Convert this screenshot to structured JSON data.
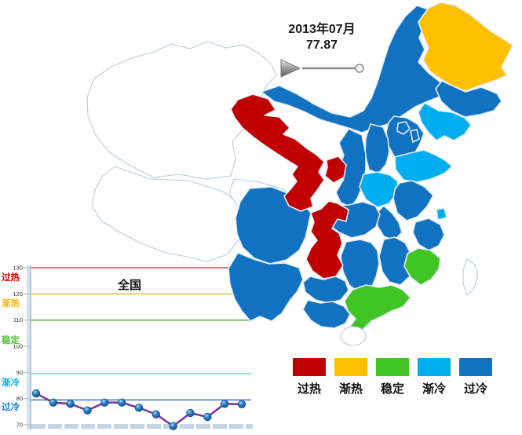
{
  "header": {
    "title_date": "2013年07月",
    "title_value": "77.87"
  },
  "slider": {
    "state": "paused",
    "position": "end"
  },
  "legend": {
    "items": [
      {
        "label": "过热",
        "color": "#C00000"
      },
      {
        "label": "渐热",
        "color": "#FFC000"
      },
      {
        "label": "稳定",
        "color": "#41C524"
      },
      {
        "label": "渐冷",
        "color": "#00AEEF"
      },
      {
        "label": "过冷",
        "color": "#1272C2"
      }
    ],
    "colors": {
      "过热": "#C00000",
      "渐热": "#FFC000",
      "稳定": "#41C524",
      "渐冷": "#00AEEF",
      "过冷": "#1272C2",
      "无数据": "#FFFFFF"
    }
  },
  "map": {
    "provinces": [
      {
        "id": "xinjiang",
        "name": "新疆",
        "status": "无数据"
      },
      {
        "id": "xizang",
        "name": "西藏",
        "status": "无数据"
      },
      {
        "id": "qinghai",
        "name": "青海",
        "status": "无数据"
      },
      {
        "id": "taiwan",
        "name": "台湾",
        "status": "无数据"
      },
      {
        "id": "hainan",
        "name": "海南",
        "status": "无数据"
      },
      {
        "id": "gansu",
        "name": "甘肃",
        "status": "过热"
      },
      {
        "id": "ningxia",
        "name": "宁夏",
        "status": "过热"
      },
      {
        "id": "chongqing",
        "name": "重庆",
        "status": "过热"
      },
      {
        "id": "heilongjiang",
        "name": "黑龙江",
        "status": "渐热"
      },
      {
        "id": "guangdong",
        "name": "广东",
        "status": "稳定"
      },
      {
        "id": "fujian",
        "name": "福建",
        "status": "稳定"
      },
      {
        "id": "liaoning",
        "name": "辽宁",
        "status": "渐冷"
      },
      {
        "id": "shandong",
        "name": "山东",
        "status": "渐冷"
      },
      {
        "id": "henan",
        "name": "河南",
        "status": "渐冷"
      },
      {
        "id": "shanghai",
        "name": "上海",
        "status": "渐冷"
      },
      {
        "id": "neimenggu",
        "name": "内蒙古",
        "status": "过冷"
      },
      {
        "id": "jilin",
        "name": "吉林",
        "status": "过冷"
      },
      {
        "id": "hebei",
        "name": "河北",
        "status": "过冷"
      },
      {
        "id": "beijing",
        "name": "北京",
        "status": "过冷"
      },
      {
        "id": "tianjin",
        "name": "天津",
        "status": "过冷"
      },
      {
        "id": "shanxi",
        "name": "山西",
        "status": "过冷"
      },
      {
        "id": "shaanxi",
        "name": "陕西",
        "status": "过冷"
      },
      {
        "id": "jiangsu",
        "name": "江苏",
        "status": "过冷"
      },
      {
        "id": "anhui",
        "name": "安徽",
        "status": "过冷"
      },
      {
        "id": "hubei",
        "name": "湖北",
        "status": "过冷"
      },
      {
        "id": "sichuan",
        "name": "四川",
        "status": "过冷"
      },
      {
        "id": "guizhou",
        "name": "贵州",
        "status": "过冷"
      },
      {
        "id": "yunnan",
        "name": "云南",
        "status": "过冷"
      },
      {
        "id": "hunan",
        "name": "湖南",
        "status": "过冷"
      },
      {
        "id": "jiangxi",
        "name": "江西",
        "status": "过冷"
      },
      {
        "id": "zhejiang",
        "name": "浙江",
        "status": "过冷"
      },
      {
        "id": "guangxi",
        "name": "广西",
        "status": "过冷"
      }
    ]
  },
  "chart": {
    "title": "全国",
    "y_ticks": [
      130,
      120,
      110,
      100,
      90,
      80,
      70
    ],
    "zones": [
      {
        "label": "过热",
        "text_color": "#CC0000",
        "line_color": "#C0504D",
        "line_value": 130
      },
      {
        "label": "渐热",
        "text_color": "#FFB400",
        "line_color": "#E2C14D",
        "line_value": 120
      },
      {
        "label": "稳定",
        "text_color": "#52C332",
        "line_color": "#71AE47",
        "line_value": 110
      },
      {
        "label": "渐冷",
        "text_color": "#00AEEF",
        "line_color": "#7DD5D5",
        "line_value": 89.5
      },
      {
        "label": "过冷",
        "text_color": "#1080D0",
        "line_color": "#4F81BD",
        "line_value": 79.5
      }
    ],
    "series_color": "#7A3B9B",
    "values": [
      82,
      78.5,
      78,
      75.5,
      78.5,
      78.5,
      76.5,
      74,
      69.5,
      74.5,
      73,
      78,
      77.87
    ]
  },
  "chart_data": [
    {
      "type": "line",
      "title": "全国",
      "x": [
        1,
        2,
        3,
        4,
        5,
        6,
        7,
        8,
        9,
        10,
        11,
        12,
        13
      ],
      "values": [
        82,
        78.5,
        78,
        75.5,
        78.5,
        78.5,
        76.5,
        74,
        69.5,
        74.5,
        73,
        78,
        77.87
      ],
      "ylim": [
        70,
        130
      ],
      "yticks": [
        70,
        80,
        90,
        100,
        110,
        120,
        130
      ],
      "grid": false,
      "legend_position": "none",
      "reference_lines": [
        {
          "label": "过热",
          "value": 130,
          "color": "#C0504D"
        },
        {
          "label": "渐热",
          "value": 120,
          "color": "#E2C14D"
        },
        {
          "label": "稳定",
          "value": 110,
          "color": "#71AE47"
        },
        {
          "label": "渐冷",
          "value": 89.5,
          "color": "#7DD5D5"
        },
        {
          "label": "过冷",
          "value": 79.5,
          "color": "#4F81BD"
        }
      ],
      "annotation": "2013年07月 77.87"
    },
    {
      "type": "heatmap",
      "title": "2013年07月 77.87",
      "categories": [
        "过热",
        "渐热",
        "稳定",
        "渐冷",
        "过冷"
      ],
      "regions": {
        "甘肃": "过热",
        "宁夏": "过热",
        "重庆": "过热",
        "黑龙江": "渐热",
        "广东": "稳定",
        "福建": "稳定",
        "辽宁": "渐冷",
        "山东": "渐冷",
        "河南": "渐冷",
        "上海": "渐冷",
        "内蒙古": "过冷",
        "吉林": "过冷",
        "河北": "过冷",
        "北京": "过冷",
        "天津": "过冷",
        "山西": "过冷",
        "陕西": "过冷",
        "江苏": "过冷",
        "安徽": "过冷",
        "湖北": "过冷",
        "四川": "过冷",
        "贵州": "过冷",
        "云南": "过冷",
        "湖南": "过冷",
        "江西": "过冷",
        "浙江": "过冷",
        "广西": "过冷",
        "新疆": "无数据",
        "西藏": "无数据",
        "青海": "无数据",
        "台湾": "无数据",
        "海南": "无数据"
      }
    }
  ]
}
